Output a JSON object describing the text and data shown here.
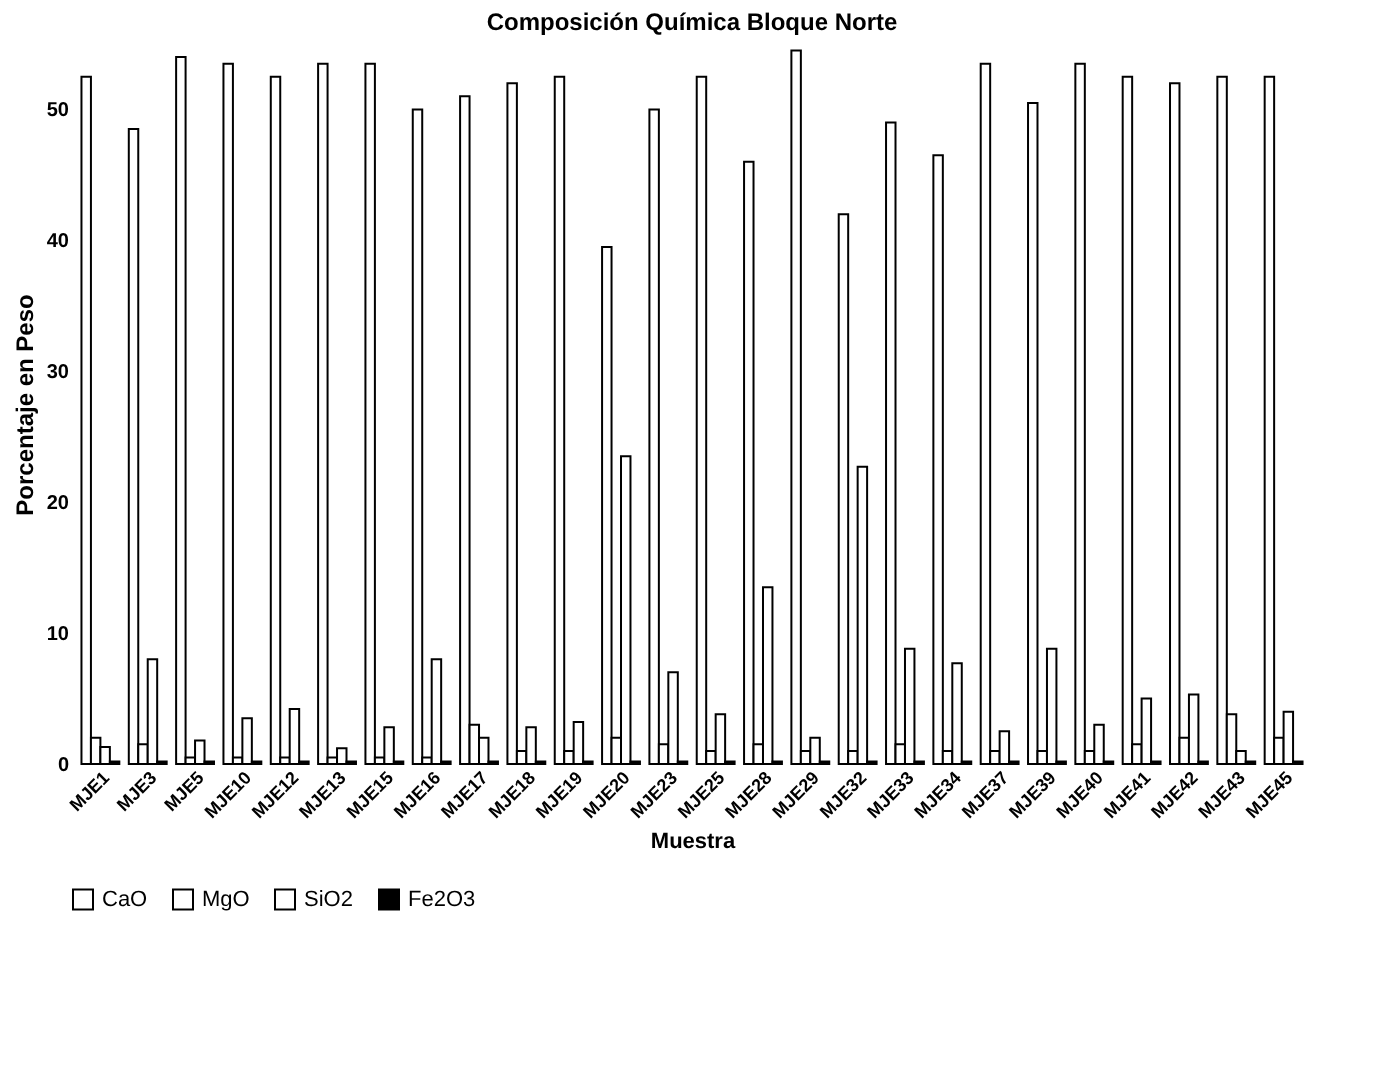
{
  "chart_data": {
    "type": "bar",
    "title": "Composición Química Bloque Norte",
    "xlabel": "Muestra",
    "ylabel": "Porcentaje en Peso",
    "categories": [
      "MJE1",
      "MJE3",
      "MJE5",
      "MJE10",
      "MJE12",
      "MJE13",
      "MJE15",
      "MJE16",
      "MJE17",
      "MJE18",
      "MJE19",
      "MJE20",
      "MJE23",
      "MJE25",
      "MJE28",
      "MJE29",
      "MJE32",
      "MJE33",
      "MJE34",
      "MJE37",
      "MJE39",
      "MJE40",
      "MJE41",
      "MJE42",
      "MJE43",
      "MJE45"
    ],
    "series": [
      {
        "name": "CaO",
        "color": "#ffffff",
        "values": [
          52.5,
          48.5,
          54,
          53.5,
          52.5,
          53.5,
          53.5,
          50,
          51,
          52,
          52.5,
          39.5,
          50,
          52.5,
          46,
          54.5,
          42,
          49,
          46.5,
          53.5,
          50.5,
          53.5,
          52.5,
          52,
          52.5,
          52.5
        ]
      },
      {
        "name": "MgO",
        "color": "#ffffff",
        "values": [
          2,
          1.5,
          0.5,
          0.5,
          0.5,
          0.5,
          0.5,
          0.5,
          3,
          1,
          1,
          2,
          1.5,
          1,
          1.5,
          1,
          1,
          1.5,
          1,
          1,
          1,
          1,
          1.5,
          2,
          3.8,
          2
        ]
      },
      {
        "name": "SiO2",
        "color": "#ffffff",
        "values": [
          1.3,
          8,
          1.8,
          3.5,
          4.2,
          1.2,
          2.8,
          8,
          2,
          2.8,
          3.2,
          23.5,
          7,
          3.8,
          13.5,
          2,
          22.7,
          8.8,
          7.7,
          2.5,
          8.8,
          3,
          5,
          5.3,
          1,
          4
        ]
      },
      {
        "name": "Fe2O3",
        "color": "#000000",
        "values": [
          0.2,
          0.2,
          0.2,
          0.2,
          0.2,
          0.2,
          0.2,
          0.2,
          0.2,
          0.2,
          0.2,
          0.2,
          0.2,
          0.2,
          0.2,
          0.2,
          0.2,
          0.2,
          0.2,
          0.2,
          0.2,
          0.2,
          0.2,
          0.2,
          0.2,
          0.2
        ]
      }
    ],
    "ylim": [
      0,
      55
    ],
    "yticks": [
      0,
      10,
      20,
      30,
      40,
      50
    ],
    "grid": false,
    "legend": "bottom"
  }
}
